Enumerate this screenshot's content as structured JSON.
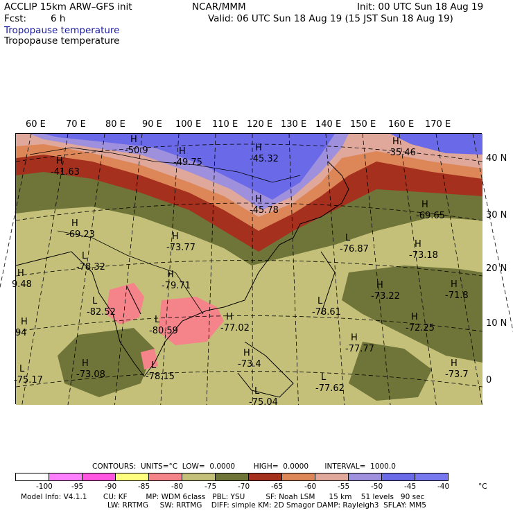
{
  "header": {
    "model": "ACCLIP 15km ARW–GFS init",
    "org": "NCAR/MMM",
    "init": "Init: 00 UTC Sun 18 Aug 19",
    "fcst_label": "Fcst:",
    "fcst_value": "6 h",
    "valid": "Valid: 06 UTC Sun 18 Aug 19 (15 JST Sun 18 Aug 19)",
    "field_title_blue": "Tropopause temperature",
    "field_title": "Tropopause temperature"
  },
  "map": {
    "lon_labels": [
      "60 E",
      "70 E",
      "80 E",
      "90 E",
      "100 E",
      "110 E",
      "120 E",
      "130 E",
      "140 E",
      "150 E",
      "160 E",
      "170 E"
    ],
    "lat_labels": [
      "40 N",
      "30 N",
      "20 N",
      "10 N",
      "0"
    ],
    "colors": {
      "c_lt_95": "#ff80ff",
      "c_95_90": "#ff55e0",
      "c_90_85": "#ffff80",
      "c_85_80": "#f4848a",
      "c_80_75": "#c4c07a",
      "c_75_70": "#6f7438",
      "c_70_65": "#a5301e",
      "c_65_60": "#dd8658",
      "c_60_55": "#e0a89a",
      "c_55_50": "#9e90dc",
      "c_50_45": "#6a6ae8",
      "c_gt_45": "#7878f0"
    },
    "markers": [
      {
        "type": "H",
        "value": "-50.9"
      },
      {
        "type": "H",
        "value": "-41.63"
      },
      {
        "type": "H",
        "value": "-49.75"
      },
      {
        "type": "H",
        "value": "-45.32"
      },
      {
        "type": "H",
        "value": "-35.46"
      },
      {
        "type": "H",
        "value": "-45.78"
      },
      {
        "type": "H",
        "value": "-69.23"
      },
      {
        "type": "H",
        "value": "-73.77"
      },
      {
        "type": "L",
        "value": "-78.32"
      },
      {
        "type": "H",
        "value": "-79.71"
      },
      {
        "type": "H",
        "value": "-69.65"
      },
      {
        "type": "L",
        "value": "-76.87"
      },
      {
        "type": "H",
        "value": "-73.18"
      },
      {
        "type": "H",
        "value": "-73.22"
      },
      {
        "type": "H",
        "value": "-71.8"
      },
      {
        "type": "L",
        "value": "-82.52"
      },
      {
        "type": "H",
        "value": "-77.02"
      },
      {
        "type": "L",
        "value": "-78.61"
      },
      {
        "type": "L",
        "value": "-80.59"
      },
      {
        "type": "H",
        "value": "-72.25"
      },
      {
        "type": "H",
        "value": "-77.77"
      },
      {
        "type": "H",
        "value": "-73.4"
      },
      {
        "type": "H",
        "value": "-73.08"
      },
      {
        "type": "L",
        "value": "-75.17"
      },
      {
        "type": "L",
        "value": "-78.15"
      },
      {
        "type": "L",
        "value": "-77.62"
      },
      {
        "type": "H",
        "value": "-73.7"
      },
      {
        "type": "L",
        "value": "-75.04"
      },
      {
        "type": "H",
        "value": "9.48"
      },
      {
        "type": "H",
        "value": "94"
      }
    ]
  },
  "contours": {
    "text": "CONTOURS:  UNITS=°C  LOW=  0.0000        HIGH=  0.0000       INTERVAL=  1000.0"
  },
  "legend": {
    "ticks": [
      "-100",
      "-95",
      "-90",
      "-85",
      "-80",
      "-75",
      "-70",
      "-65",
      "-60",
      "-55",
      "-50",
      "-45",
      "-40"
    ],
    "unit": "°C",
    "box_colors": [
      "#ffffff",
      "#ff80ff",
      "#ff55e0",
      "#ffff80",
      "#f4848a",
      "#c4c07a",
      "#6f7438",
      "#a5301e",
      "#dd8658",
      "#e0a89a",
      "#9e90dc",
      "#6a6ae8",
      "#7878f0"
    ]
  },
  "footer": {
    "line1": "Model Info: V4.1.1       CU: KF        MP: WDM 6class   PBL: YSU         SF: Noah LSM      15 km    51 levels   90 sec",
    "line2": "LW: RRTMG     SW: RRTMG    DIFF: simple KM: 2D Smagor DAMP: Rayleigh3  SFLAY: MM5"
  }
}
